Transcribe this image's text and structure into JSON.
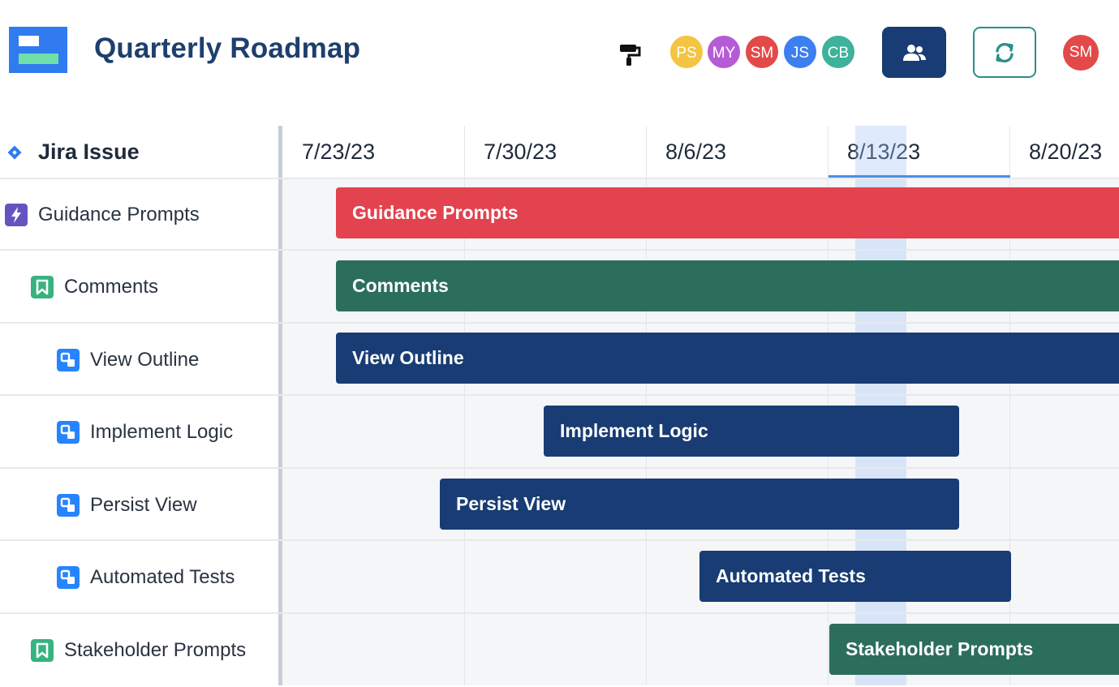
{
  "app": {
    "title": "Quarterly Roadmap"
  },
  "header": {
    "collaborators": [
      {
        "initials": "PS",
        "color": "#f3c543"
      },
      {
        "initials": "MY",
        "color": "#b65bd6"
      },
      {
        "initials": "SM",
        "color": "#e34949"
      },
      {
        "initials": "JS",
        "color": "#3d7ef0"
      },
      {
        "initials": "CB",
        "color": "#3fb29b"
      }
    ],
    "current_user": {
      "initials": "SM",
      "color": "#e34949"
    },
    "icons": {
      "paint": "paint-roller-icon",
      "people": "people-icon",
      "sync": "sync-icon"
    }
  },
  "timeline": {
    "column_header": "Jira Issue",
    "dates": [
      "7/23/23",
      "7/30/23",
      "8/6/23",
      "8/13/23",
      "8/20/23"
    ],
    "current_week": "8/13/23"
  },
  "issues": [
    {
      "label": "Guidance Prompts",
      "type": "epic",
      "icon_color": "#6554c0",
      "indent": 0,
      "bar_color": "#e2434f"
    },
    {
      "label": "Comments",
      "type": "story",
      "icon_color": "#36b37e",
      "indent": 1,
      "bar_color": "#2c6e5c"
    },
    {
      "label": "View Outline",
      "type": "subtask",
      "icon_color": "#2684ff",
      "indent": 2,
      "bar_color": "#183c73"
    },
    {
      "label": "Implement Logic",
      "type": "subtask",
      "icon_color": "#2684ff",
      "indent": 2,
      "bar_color": "#183c73"
    },
    {
      "label": "Persist View",
      "type": "subtask",
      "icon_color": "#2684ff",
      "indent": 2,
      "bar_color": "#183c73"
    },
    {
      "label": "Automated Tests",
      "type": "subtask",
      "icon_color": "#2684ff",
      "indent": 2,
      "bar_color": "#183c73"
    },
    {
      "label": "Stakeholder Prompts",
      "type": "story",
      "icon_color": "#36b37e",
      "indent": 1,
      "bar_color": "#2c6e5c"
    }
  ]
}
